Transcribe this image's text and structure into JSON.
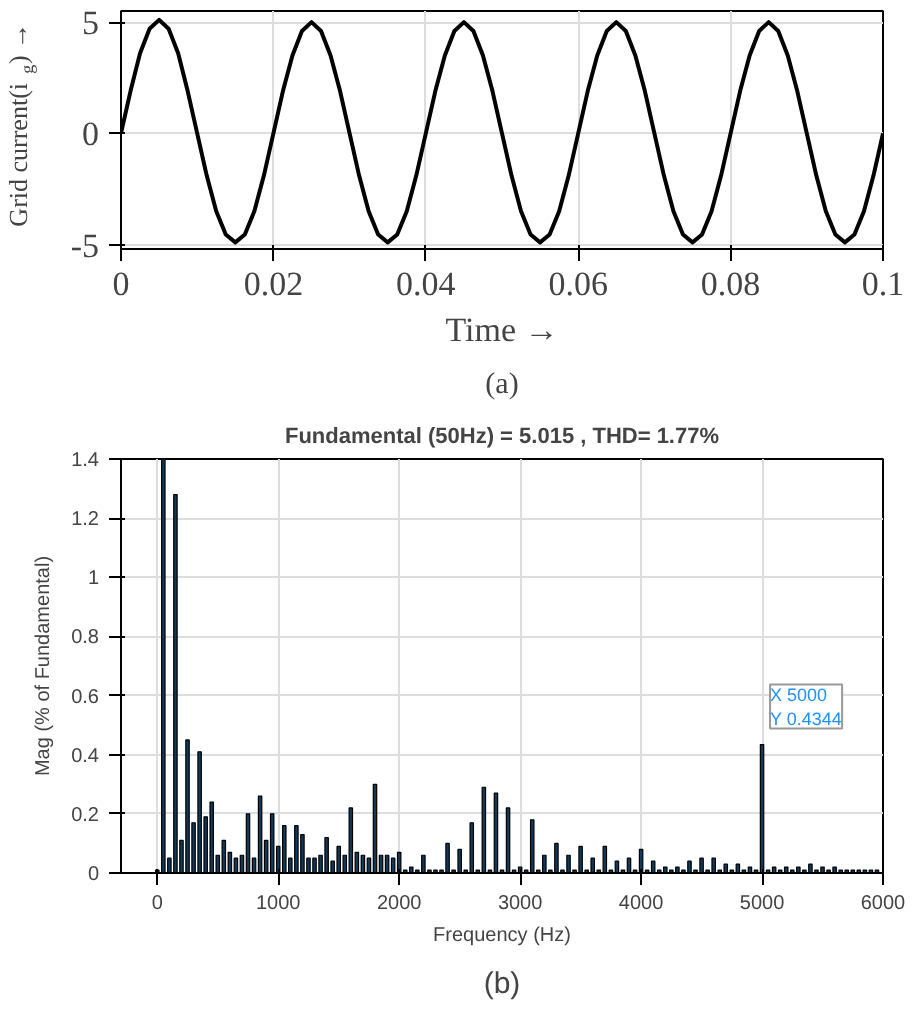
{
  "chart_data": [
    {
      "type": "line",
      "xlabel": "Time →",
      "ylabel": "Grid current(i$_{g}$) →",
      "xlim": [
        0,
        0.1
      ],
      "ylim": [
        -5.2,
        5.5
      ],
      "xticks": [
        0,
        0.02,
        0.04,
        0.06,
        0.08,
        0.1
      ],
      "yticks": [
        -5,
        0,
        5
      ],
      "grid": true,
      "annotations": [
        "(a)"
      ],
      "series": [
        {
          "color": "#000000",
          "x": [
            0,
            0.00125,
            0.0025,
            0.00375,
            0.005,
            0.00625,
            0.0075,
            0.00875,
            0.01,
            0.01125,
            0.0125,
            0.01375,
            0.015,
            0.01625,
            0.0175,
            0.01875,
            0.02,
            0.02125,
            0.0225,
            0.02375,
            0.025,
            0.02625,
            0.0275,
            0.02875,
            0.03,
            0.03125,
            0.0325,
            0.03375,
            0.035,
            0.03625,
            0.0375,
            0.03875,
            0.04,
            0.04125,
            0.0425,
            0.04375,
            0.045,
            0.04625,
            0.0475,
            0.04875,
            0.05,
            0.05125,
            0.0525,
            0.05375,
            0.055,
            0.05625,
            0.0575,
            0.05875,
            0.06,
            0.06125,
            0.0625,
            0.06375,
            0.065,
            0.06625,
            0.0675,
            0.06875,
            0.07,
            0.07125,
            0.0725,
            0.07375,
            0.075,
            0.07625,
            0.0775,
            0.07875,
            0.08,
            0.08125,
            0.0825,
            0.08375,
            0.085,
            0.08625,
            0.0875,
            0.08875,
            0.09,
            0.09125,
            0.0925,
            0.09375,
            0.095,
            0.09625,
            0.0975,
            0.09875,
            0.1
          ],
          "values": [
            0,
            1.9,
            3.6,
            4.7,
            5.1,
            4.7,
            3.6,
            1.9,
            0,
            -1.9,
            -3.5,
            -4.55,
            -4.9,
            -4.55,
            -3.5,
            -1.9,
            0,
            1.9,
            3.5,
            4.6,
            5,
            4.6,
            3.5,
            1.9,
            0,
            -1.9,
            -3.5,
            -4.55,
            -4.9,
            -4.55,
            -3.5,
            -1.9,
            0,
            1.9,
            3.5,
            4.6,
            5,
            4.6,
            3.5,
            1.9,
            0,
            -1.9,
            -3.5,
            -4.55,
            -4.9,
            -4.55,
            -3.5,
            -1.9,
            0,
            1.9,
            3.5,
            4.6,
            5,
            4.6,
            3.5,
            1.9,
            0,
            -1.9,
            -3.5,
            -4.55,
            -4.9,
            -4.55,
            -3.5,
            -1.9,
            0,
            1.9,
            3.5,
            4.6,
            5,
            4.6,
            3.5,
            1.9,
            0,
            -1.9,
            -3.5,
            -4.55,
            -4.9,
            -4.55,
            -3.5,
            -1.9,
            0
          ]
        }
      ]
    },
    {
      "type": "bar",
      "title": "Fundamental (50Hz) = 5.015 , THD= 1.77%",
      "xlabel": "Frequency (Hz)",
      "ylabel": "Mag (% of Fundamental)",
      "xlim": [
        -300,
        6000
      ],
      "ylim": [
        0,
        1.4
      ],
      "xticks": [
        0,
        1000,
        2000,
        3000,
        4000,
        5000,
        6000
      ],
      "yticks": [
        0,
        0.2,
        0.4,
        0.6,
        0.8,
        1,
        1.2,
        1.4
      ],
      "grid": true,
      "annotations": [
        {
          "text": "X 5000\nY 0.4344",
          "x": 5000,
          "y": 0.4344
        },
        "(b)"
      ],
      "series": [
        {
          "color": "#12395a",
          "x": [
            0,
            50,
            100,
            150,
            200,
            250,
            300,
            350,
            400,
            450,
            500,
            550,
            600,
            650,
            700,
            750,
            800,
            850,
            900,
            950,
            1000,
            1050,
            1100,
            1150,
            1200,
            1250,
            1300,
            1350,
            1400,
            1450,
            1500,
            1550,
            1600,
            1650,
            1700,
            1750,
            1800,
            1850,
            1900,
            1950,
            2000,
            2050,
            2100,
            2150,
            2200,
            2250,
            2300,
            2350,
            2400,
            2450,
            2500,
            2550,
            2600,
            2650,
            2700,
            2750,
            2800,
            2850,
            2900,
            2950,
            3000,
            3050,
            3100,
            3150,
            3200,
            3250,
            3300,
            3350,
            3400,
            3450,
            3500,
            3550,
            3600,
            3650,
            3700,
            3750,
            3800,
            3850,
            3900,
            3950,
            4000,
            4050,
            4100,
            4150,
            4200,
            4250,
            4300,
            4350,
            4400,
            4450,
            4500,
            4550,
            4600,
            4650,
            4700,
            4750,
            4800,
            4850,
            4900,
            4950,
            5000,
            5050,
            5100,
            5150,
            5200,
            5250,
            5300,
            5350,
            5400,
            5450,
            5500,
            5550,
            5600,
            5650,
            5700,
            5750,
            5800,
            5850,
            5900,
            5950
          ],
          "values": [
            0.01,
            1.4,
            0.05,
            1.28,
            0.11,
            0.45,
            0.17,
            0.41,
            0.19,
            0.24,
            0.06,
            0.11,
            0.07,
            0.05,
            0.06,
            0.2,
            0.05,
            0.26,
            0.11,
            0.2,
            0.09,
            0.16,
            0.05,
            0.16,
            0.13,
            0.05,
            0.05,
            0.06,
            0.12,
            0.04,
            0.09,
            0.06,
            0.22,
            0.07,
            0.06,
            0.05,
            0.3,
            0.06,
            0.06,
            0.05,
            0.07,
            0.01,
            0.02,
            0.01,
            0.06,
            0.01,
            0.01,
            0.01,
            0.1,
            0.01,
            0.08,
            0.01,
            0.17,
            0.01,
            0.29,
            0.01,
            0.27,
            0.01,
            0.22,
            0.01,
            0.02,
            0.01,
            0.18,
            0.01,
            0.06,
            0.01,
            0.1,
            0.01,
            0.06,
            0.01,
            0.09,
            0.01,
            0.05,
            0.01,
            0.09,
            0.01,
            0.04,
            0.01,
            0.05,
            0.01,
            0.08,
            0.01,
            0.04,
            0.01,
            0.02,
            0.01,
            0.02,
            0.01,
            0.04,
            0.01,
            0.05,
            0.01,
            0.05,
            0.01,
            0.03,
            0.01,
            0.03,
            0.01,
            0.02,
            0.01,
            0.4344,
            0.01,
            0.02,
            0.01,
            0.02,
            0.01,
            0.02,
            0.01,
            0.03,
            0.01,
            0.02,
            0.01,
            0.02,
            0.01,
            0.01,
            0.01,
            0.01,
            0.01,
            0.01,
            0.01
          ]
        }
      ]
    }
  ]
}
